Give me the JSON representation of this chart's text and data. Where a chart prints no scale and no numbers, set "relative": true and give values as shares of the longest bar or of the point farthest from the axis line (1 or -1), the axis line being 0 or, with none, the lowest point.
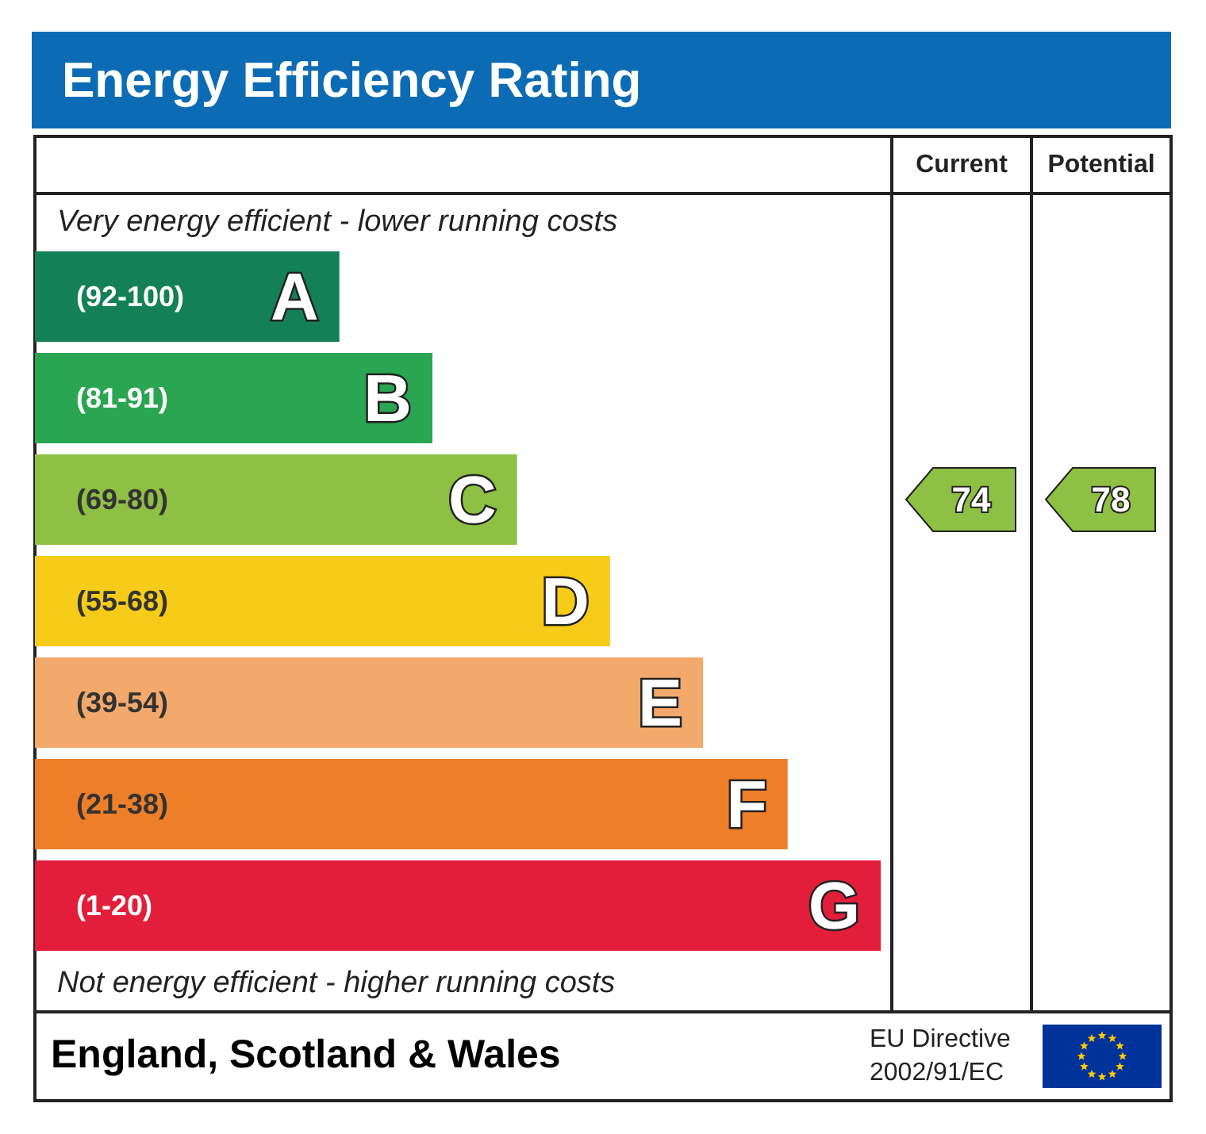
{
  "chart_data": {
    "type": "bar",
    "orientation": "horizontal",
    "relative": true,
    "title": "Energy Efficiency Rating",
    "categories": [
      "A",
      "B",
      "C",
      "D",
      "E",
      "F",
      "G"
    ],
    "values": [
      0.36,
      0.47,
      0.57,
      0.68,
      0.79,
      0.89,
      1
    ],
    "colors": [
      "#138058",
      "#2aa652",
      "#8dc043",
      "#f6cc18",
      "#f2a96b",
      "#ee7f28",
      "#e21e3b"
    ],
    "annotations": [
      "Current",
      "Potential",
      "Very energy efficient - lower running costs",
      "Not energy efficient - higher running costs",
      "England, Scotland & Wales",
      "EU Directive 2002/91/EC",
      "(92-100)",
      "(81-91)",
      "(69-80)",
      "(55-68)",
      "(39-54)",
      "(21-38)",
      "(1-20)",
      "74",
      "78"
    ]
  }
}
